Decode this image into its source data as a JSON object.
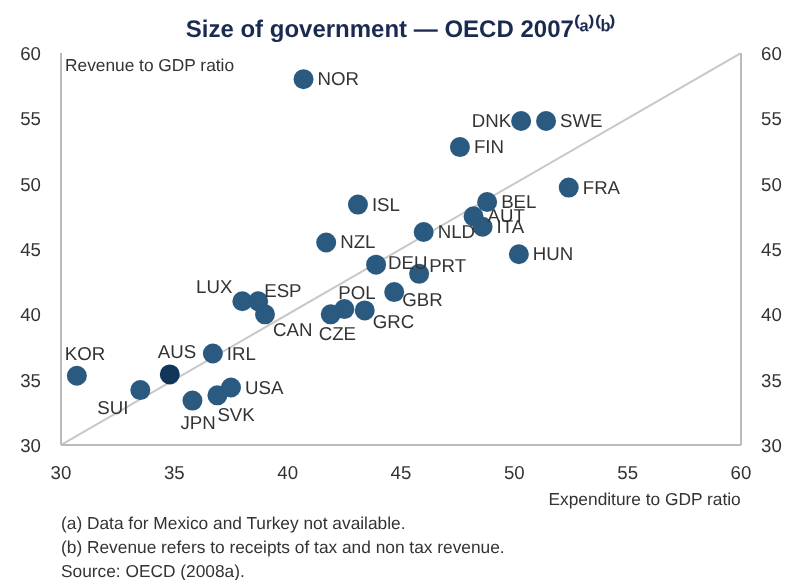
{
  "chart_data": {
    "type": "scatter",
    "title": "Size of government — OECD 2007⁽ᵃ⁾⁽ᵇ⁾",
    "xlabel": "Expenditure to GDP ratio",
    "ylabel": "Revenue to GDP ratio",
    "xlim": [
      30,
      60
    ],
    "xticks": [
      30,
      35,
      40,
      45,
      50,
      55,
      60
    ],
    "ylim": [
      30,
      60
    ],
    "yticks": [
      30,
      35,
      40,
      45,
      50,
      55,
      60
    ],
    "y2lim": [
      30,
      60
    ],
    "y2ticks": [
      30,
      35,
      40,
      45,
      50,
      55,
      60
    ],
    "grid": false,
    "series": [
      {
        "type": "line",
        "color": "#c8c8c8",
        "x": [
          30,
          60
        ],
        "values": [
          30,
          60
        ]
      },
      {
        "marker": "circle",
        "color": "#2a5a80",
        "x": [
          40.7,
          50.3,
          51.4,
          47.6,
          52.4,
          43.1,
          48.8,
          48.2,
          48.6,
          46.0,
          41.7,
          50.2,
          43.9,
          45.8,
          38.0,
          38.7,
          39.0,
          42.5,
          41.9,
          43.4,
          44.7,
          30.7,
          34.8,
          33.5,
          36.7,
          35.8,
          36.9,
          37.5
        ],
        "values": [
          58.0,
          54.8,
          54.8,
          52.8,
          49.7,
          48.4,
          48.6,
          47.5,
          46.7,
          46.3,
          45.5,
          44.6,
          43.8,
          43.1,
          41.0,
          41.0,
          40.0,
          40.4,
          40.0,
          40.3,
          41.7,
          35.3,
          35.4,
          34.2,
          37.0,
          33.4,
          33.8,
          34.4
        ],
        "colors": [
          "#2a5a80",
          "#2a5a80",
          "#2a5a80",
          "#2a5a80",
          "#2a5a80",
          "#2a5a80",
          "#2a5a80",
          "#2a5a80",
          "#2a5a80",
          "#2a5a80",
          "#2a5a80",
          "#2a5a80",
          "#2a5a80",
          "#2a5a80",
          "#2a5a80",
          "#2a5a80",
          "#2a5a80",
          "#2a5a80",
          "#2a5a80",
          "#2a5a80",
          "#2a5a80",
          "#2a5a80",
          "#12355a",
          "#2a5a80",
          "#2a5a80",
          "#2a5a80",
          "#2a5a80",
          "#2a5a80"
        ]
      }
    ],
    "annotations": [
      {
        "text": "NOR",
        "x": 40.7,
        "y": 58.0
      },
      {
        "text": "DNK",
        "x": 50.3,
        "y": 54.8
      },
      {
        "text": "SWE",
        "x": 51.4,
        "y": 54.8
      },
      {
        "text": "FIN",
        "x": 47.6,
        "y": 52.8
      },
      {
        "text": "FRA",
        "x": 52.4,
        "y": 49.7
      },
      {
        "text": "ISL",
        "x": 43.1,
        "y": 48.4
      },
      {
        "text": "BEL",
        "x": 48.8,
        "y": 48.6
      },
      {
        "text": "AUT",
        "x": 48.2,
        "y": 47.5
      },
      {
        "text": "ITA",
        "x": 48.6,
        "y": 46.7
      },
      {
        "text": "NLD",
        "x": 46.0,
        "y": 46.3
      },
      {
        "text": "NZL",
        "x": 41.7,
        "y": 45.5
      },
      {
        "text": "HUN",
        "x": 50.2,
        "y": 44.6
      },
      {
        "text": "DEU",
        "x": 43.9,
        "y": 43.8
      },
      {
        "text": "PRT",
        "x": 45.8,
        "y": 43.1
      },
      {
        "text": "LUX",
        "x": 38.0,
        "y": 41.0
      },
      {
        "text": "ESP",
        "x": 38.7,
        "y": 41.0
      },
      {
        "text": "CAN",
        "x": 39.0,
        "y": 40.0
      },
      {
        "text": "POL",
        "x": 42.5,
        "y": 40.4
      },
      {
        "text": "CZE",
        "x": 41.9,
        "y": 40.0
      },
      {
        "text": "GRC",
        "x": 43.4,
        "y": 40.3
      },
      {
        "text": "GBR",
        "x": 44.7,
        "y": 41.7
      },
      {
        "text": "KOR",
        "x": 30.7,
        "y": 35.3
      },
      {
        "text": "AUS",
        "x": 34.8,
        "y": 35.4
      },
      {
        "text": "SUI",
        "x": 33.5,
        "y": 34.2
      },
      {
        "text": "IRL",
        "x": 36.7,
        "y": 37.0
      },
      {
        "text": "JPN",
        "x": 35.8,
        "y": 33.4
      },
      {
        "text": "SVK",
        "x": 36.9,
        "y": 33.8
      },
      {
        "text": "USA",
        "x": 37.5,
        "y": 34.4
      },
      "(a)  Data for Mexico and Turkey not available.",
      "(b)  Revenue refers to receipts of tax and non tax revenue.",
      "Source: OECD (2008a)."
    ]
  }
}
